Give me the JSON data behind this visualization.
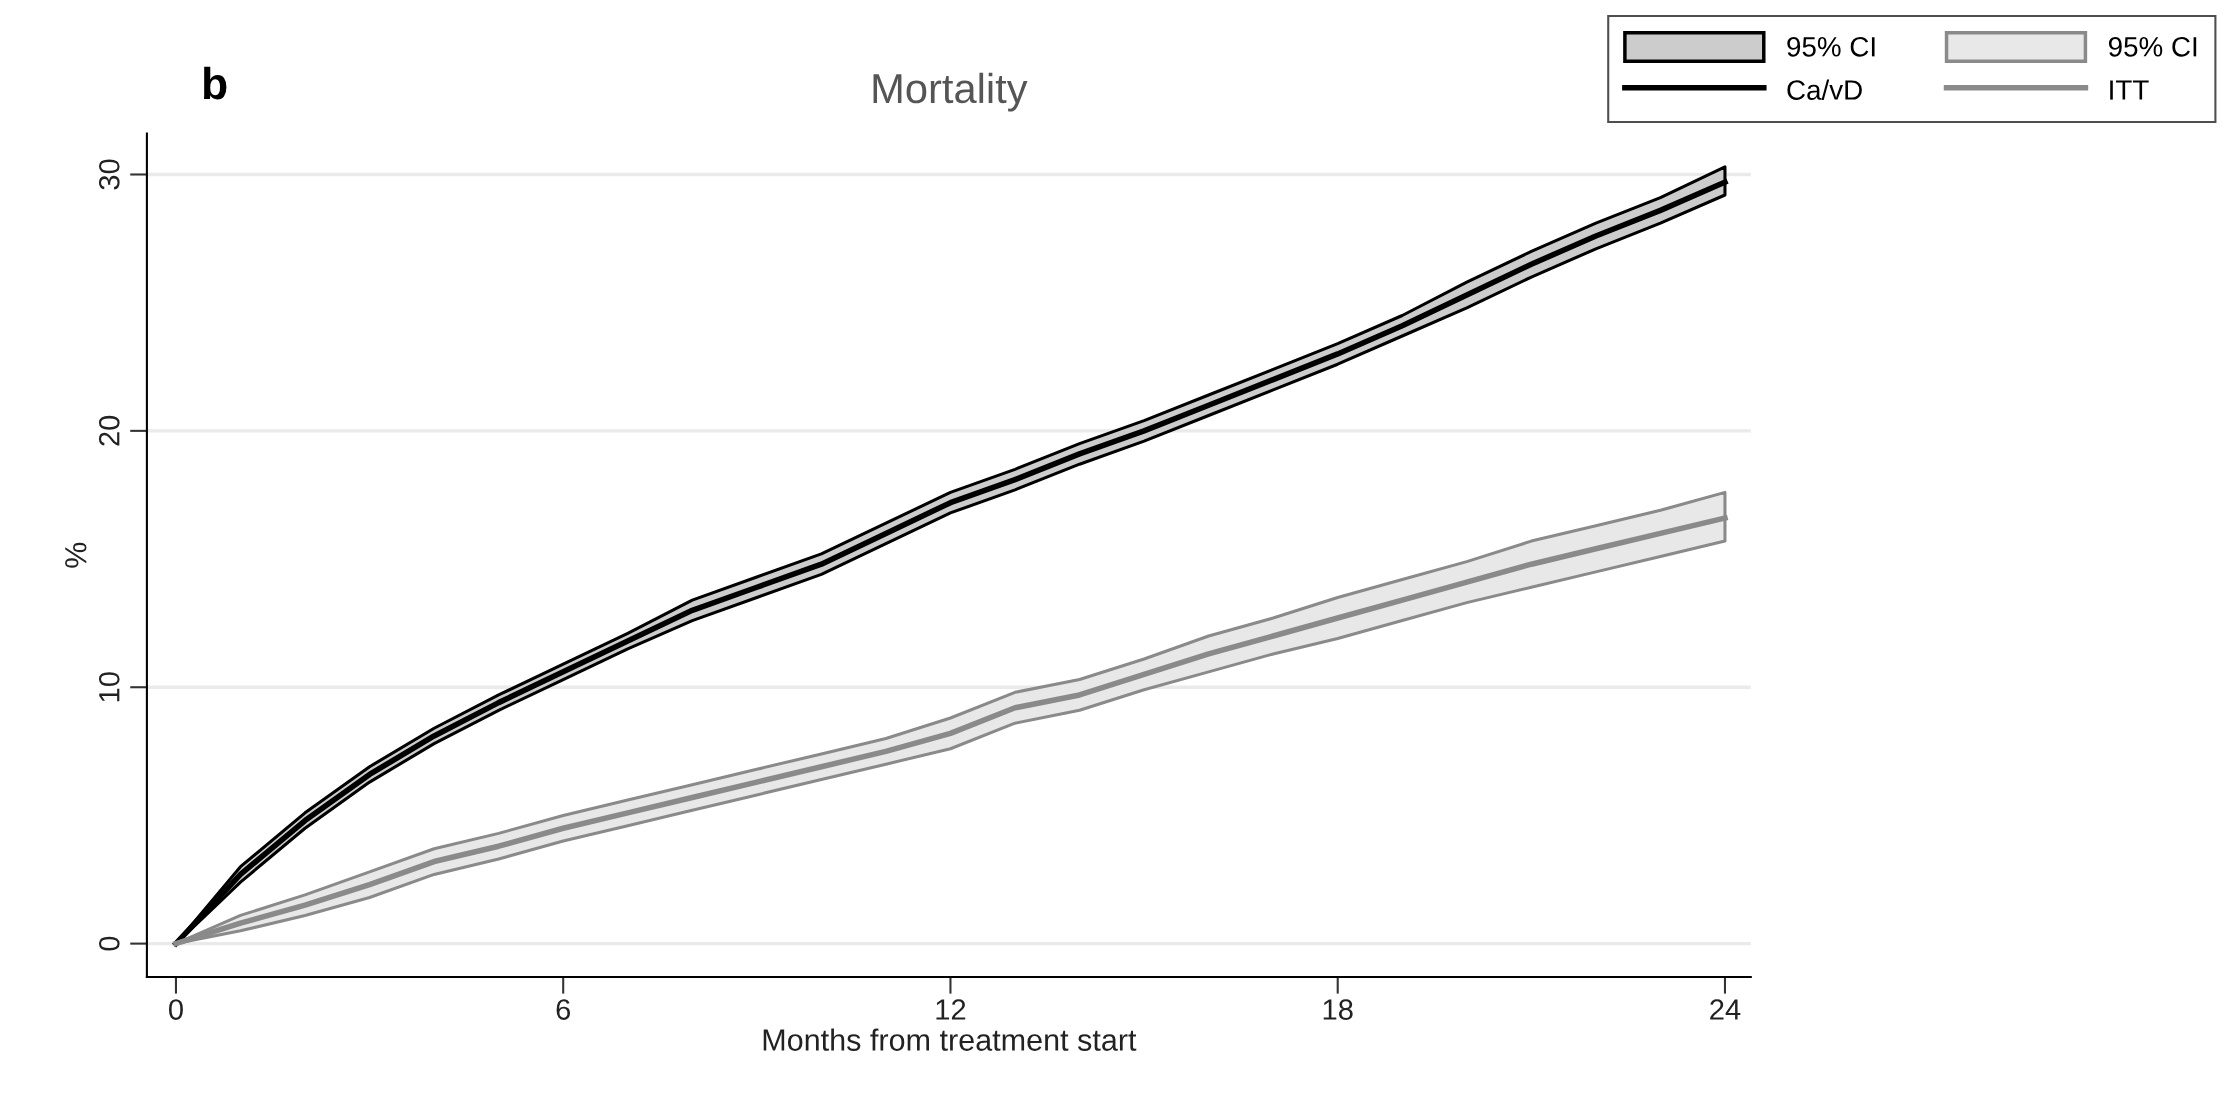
{
  "chart_data": {
    "type": "line",
    "title": "Mortality",
    "xlabel": "Months from treatment start",
    "ylabel": "%",
    "annotations": [
      "b",
      "95% CI",
      "95% CI"
    ],
    "x": [
      0,
      1,
      2,
      3,
      4,
      5,
      6,
      7,
      8,
      9,
      10,
      11,
      12,
      13,
      14,
      15,
      16,
      17,
      18,
      19,
      20,
      21,
      22,
      23,
      24
    ],
    "series": [
      {
        "name": "Ca/vD",
        "color": "#000000",
        "values": [
          0,
          2.7,
          4.8,
          6.6,
          8.1,
          9.4,
          10.6,
          11.8,
          13.0,
          13.9,
          14.8,
          16.0,
          17.2,
          18.1,
          19.1,
          20.0,
          21.0,
          22.0,
          23.0,
          24.1,
          25.3,
          26.5,
          27.6,
          28.6,
          29.7
        ],
        "lower": [
          0,
          2.4,
          4.5,
          6.3,
          7.8,
          9.1,
          10.3,
          11.5,
          12.6,
          13.5,
          14.4,
          15.6,
          16.8,
          17.7,
          18.7,
          19.6,
          20.6,
          21.6,
          22.6,
          23.7,
          24.8,
          26.0,
          27.1,
          28.1,
          29.2
        ],
        "upper": [
          0,
          3.0,
          5.1,
          6.9,
          8.4,
          9.7,
          10.9,
          12.1,
          13.4,
          14.3,
          15.2,
          16.4,
          17.6,
          18.5,
          19.5,
          20.4,
          21.4,
          22.4,
          23.4,
          24.5,
          25.8,
          27.0,
          28.1,
          29.1,
          30.3
        ]
      },
      {
        "name": "ITT",
        "color": "#8a8a8a",
        "values": [
          0,
          0.8,
          1.5,
          2.3,
          3.2,
          3.8,
          4.5,
          5.1,
          5.7,
          6.3,
          6.9,
          7.5,
          8.2,
          9.2,
          9.7,
          10.5,
          11.3,
          12.0,
          12.7,
          13.4,
          14.1,
          14.8,
          15.4,
          16.0,
          16.6
        ],
        "lower": [
          0,
          0.5,
          1.1,
          1.8,
          2.7,
          3.3,
          4.0,
          4.6,
          5.2,
          5.8,
          6.4,
          7.0,
          7.6,
          8.6,
          9.1,
          9.9,
          10.6,
          11.3,
          11.9,
          12.6,
          13.3,
          13.9,
          14.5,
          15.1,
          15.7
        ],
        "upper": [
          0,
          1.1,
          1.9,
          2.8,
          3.7,
          4.3,
          5.0,
          5.6,
          6.2,
          6.8,
          7.4,
          8.0,
          8.8,
          9.8,
          10.3,
          11.1,
          12.0,
          12.7,
          13.5,
          14.2,
          14.9,
          15.7,
          16.3,
          16.9,
          17.6
        ]
      }
    ],
    "xlim": [
      -0.45,
      24.4
    ],
    "xticks": [
      0,
      6,
      12,
      18,
      24
    ],
    "ylim": [
      -1.3,
      31.6
    ],
    "yticks": [
      0,
      10,
      20,
      30
    ],
    "grid": "y",
    "legend": "top right",
    "line_style": "solid",
    "marker": "none"
  }
}
